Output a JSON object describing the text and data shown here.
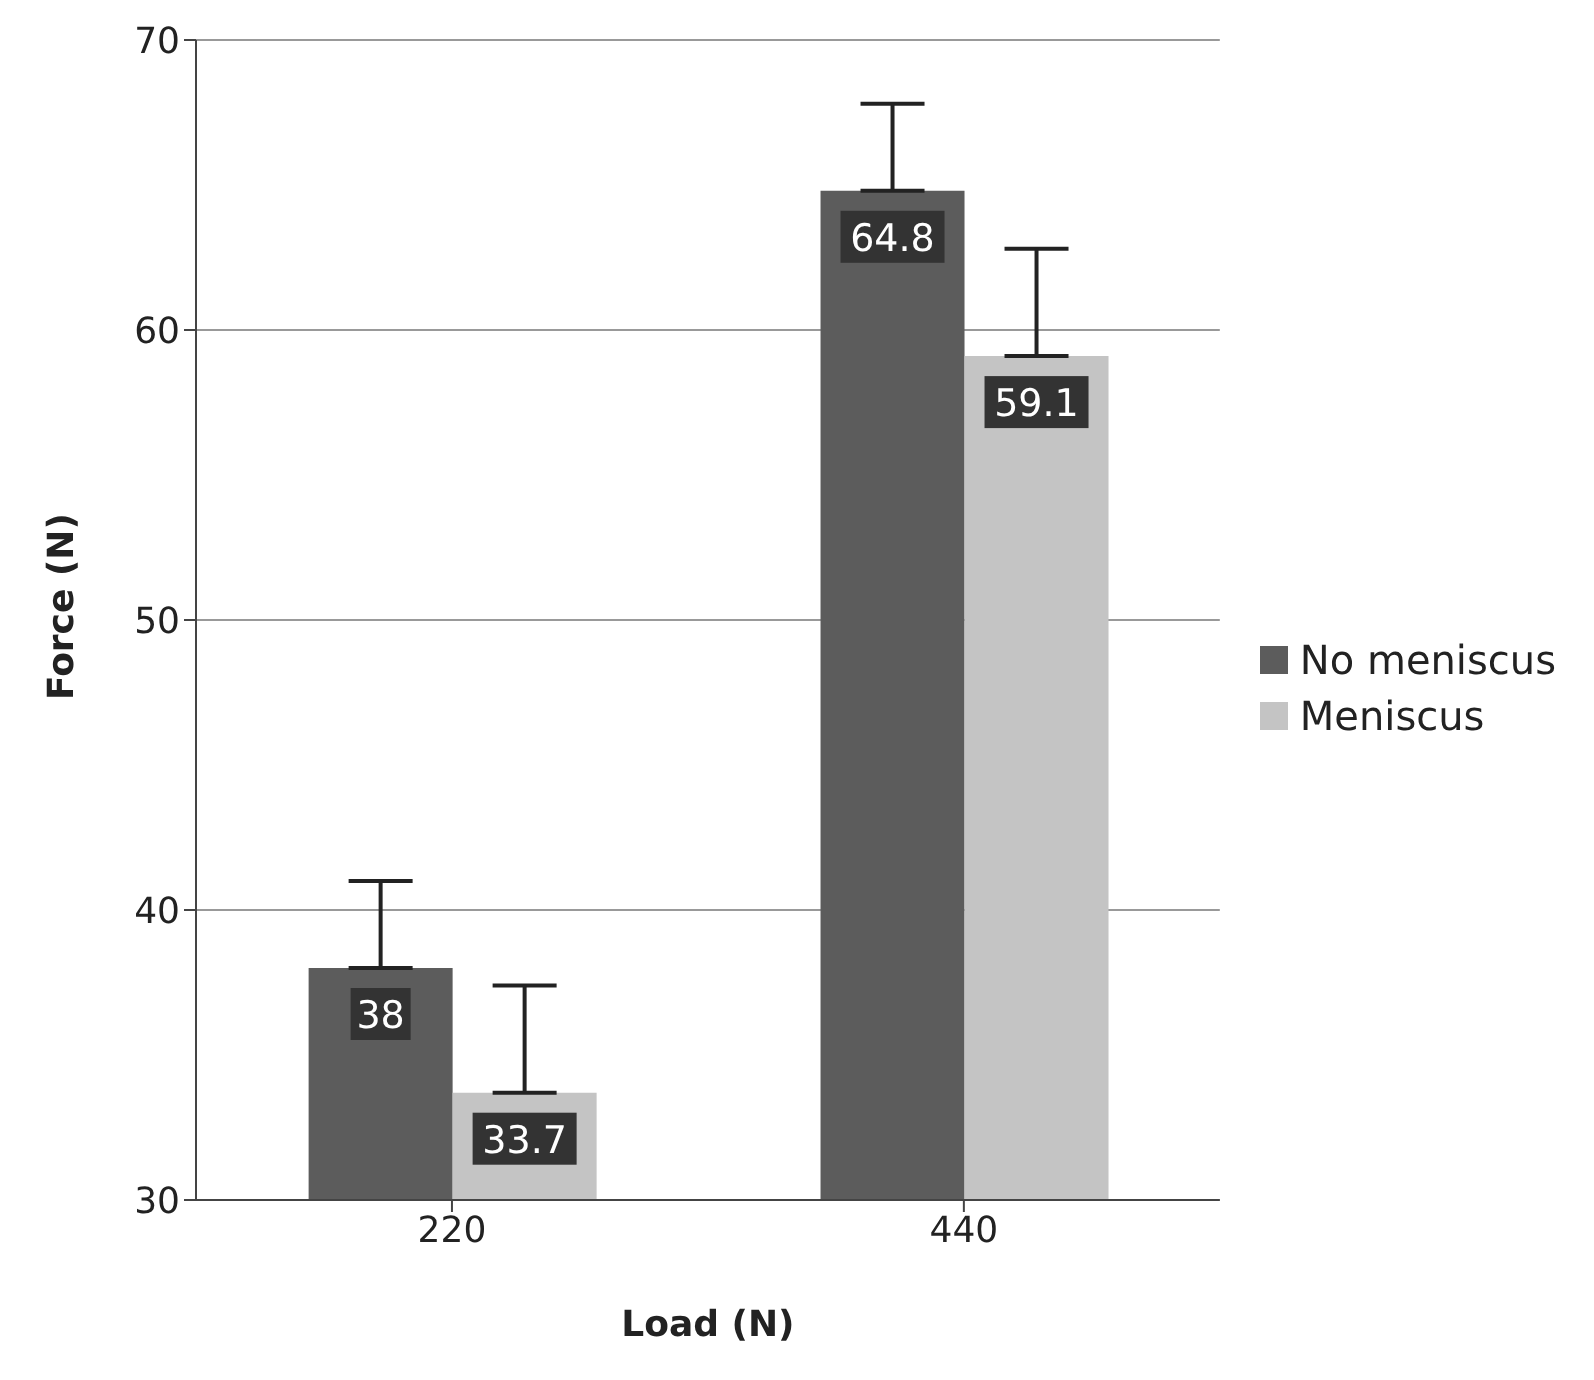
{
  "chart_data": {
    "type": "bar",
    "xlabel": "Load (N)",
    "ylabel": "Force (N)",
    "categories": [
      "220",
      "440"
    ],
    "series": [
      {
        "name": "No meniscus",
        "color": "#5c5c5c",
        "values": [
          38,
          64.8
        ],
        "errors": [
          [
            38,
            41
          ],
          [
            64.8,
            67.8
          ]
        ]
      },
      {
        "name": "Meniscus",
        "color": "#c4c4c4",
        "values": [
          33.7,
          59.1
        ],
        "errors": [
          [
            33.7,
            37.4
          ],
          [
            59.1,
            62.8
          ]
        ]
      }
    ],
    "ylim": [
      30,
      70
    ],
    "yticks": [
      30,
      40,
      50,
      60,
      70
    ],
    "grid": "y",
    "legend": "right",
    "data_labels": true
  }
}
